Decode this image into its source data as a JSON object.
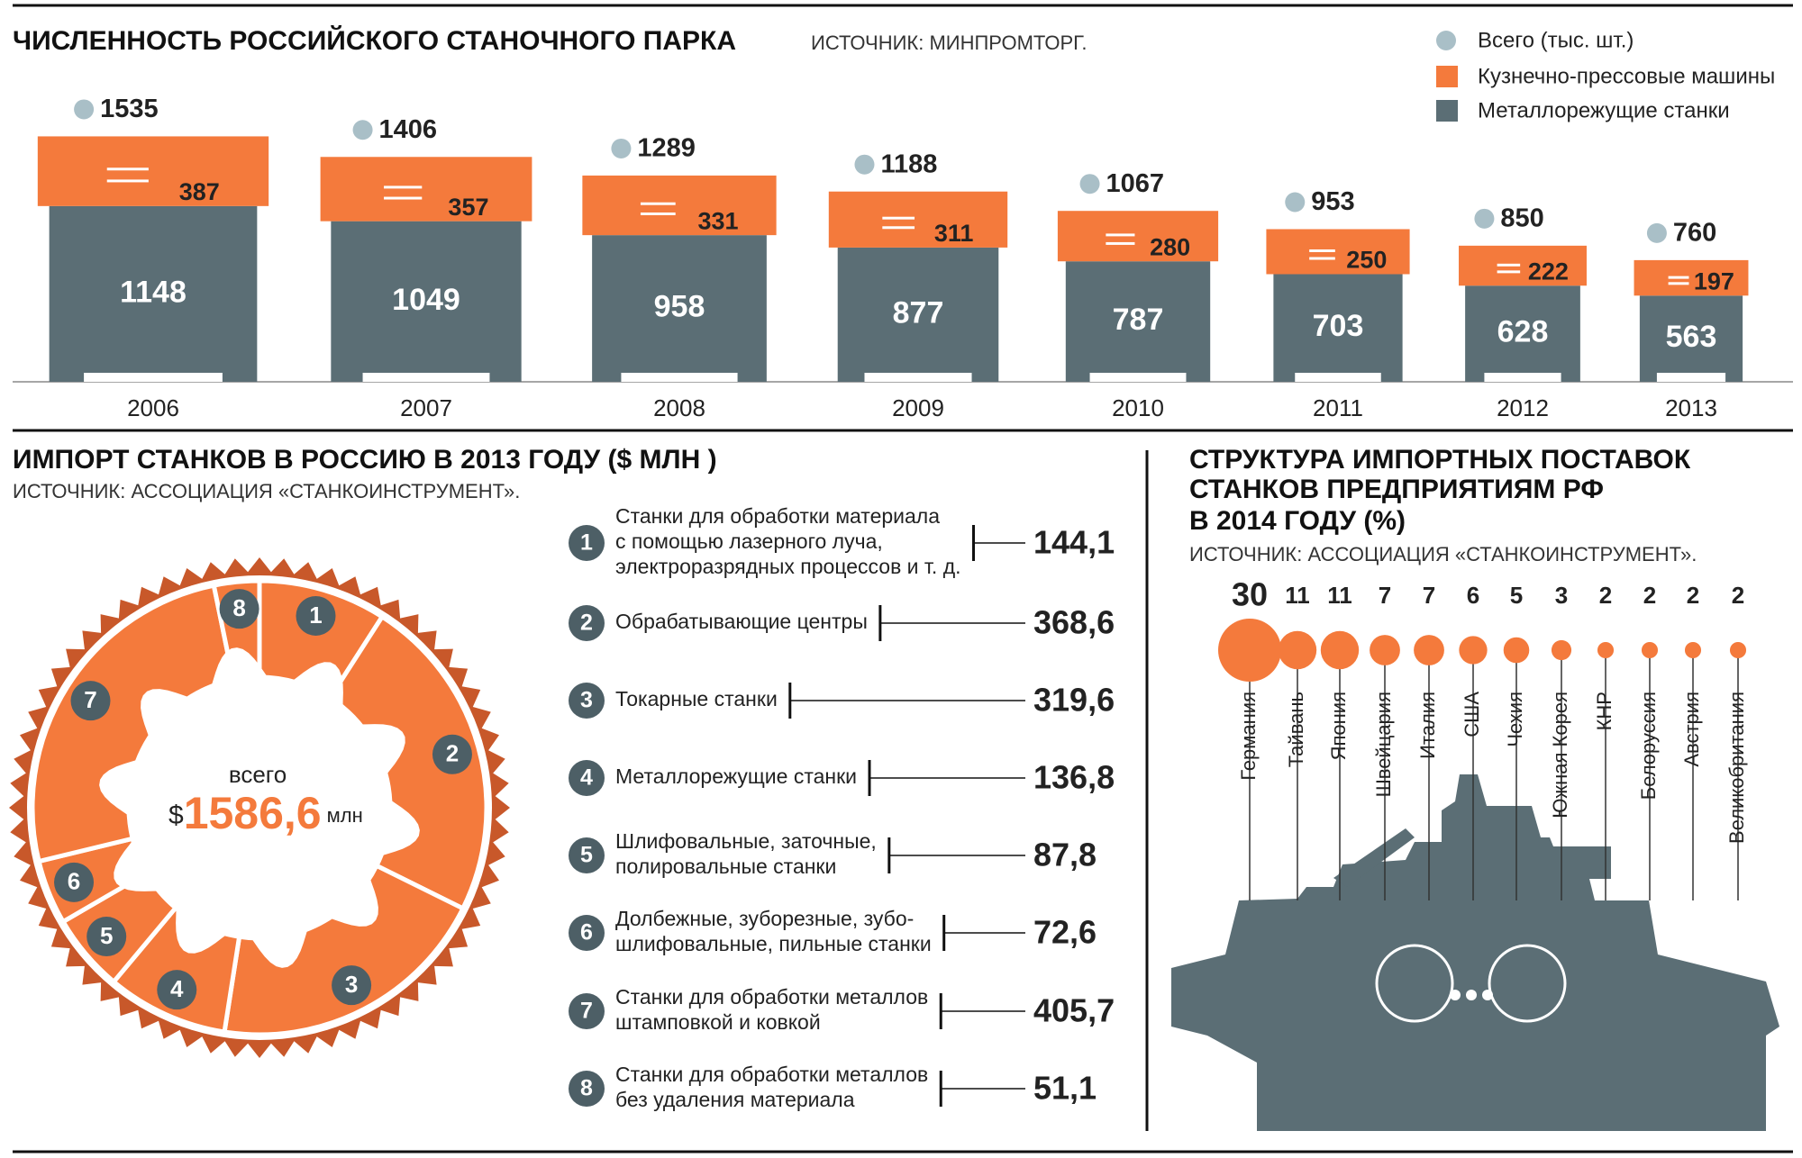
{
  "chart_data": [
    {
      "type": "stacked-bar",
      "title": "ЧИСЛЕННОСТЬ РОССИЙСКОГО СТАНОЧНОГО ПАРКА",
      "subtitle": "ИСТОЧНИК: МИНПРОМТОРГ.",
      "categories": [
        "2006",
        "2007",
        "2008",
        "2009",
        "2010",
        "2011",
        "2012",
        "2013"
      ],
      "series": [
        {
          "name": "Металлорежущие станки",
          "color": "#5b6e75",
          "values": [
            1148,
            1049,
            958,
            877,
            787,
            703,
            628,
            563
          ]
        },
        {
          "name": "Кузнечно-прессовые машины",
          "color": "#f47a3c",
          "values": [
            387,
            357,
            331,
            311,
            280,
            250,
            222,
            197
          ]
        }
      ],
      "totals": {
        "name": "Всего (тыс. шт.)",
        "color": "#a9bfc7",
        "values": [
          1535,
          1406,
          1289,
          1188,
          1067,
          953,
          850,
          760
        ]
      }
    },
    {
      "type": "donut",
      "title": "ИМПОРТ СТАНКОВ В РОССИЮ В 2013 ГОДУ ($ МЛН )",
      "subtitle": "ИСТОЧНИК: АССОЦИАЦИЯ «СТАНКОИНСТРУМЕНТ».",
      "total_caption": "всего",
      "total_prefix": "$",
      "total": {
        "value": 1586.6,
        "label": "1586,6"
      },
      "total_unit": "млн",
      "color": "#f47a3c",
      "categories": [
        "1",
        "2",
        "3",
        "4",
        "5",
        "6",
        "7",
        "8"
      ],
      "labels": [
        [
          "Станки для обработки материала",
          "с помощью лазерного луча,",
          "электроразрядных процессов и т. д."
        ],
        [
          "Обрабатывающие центры"
        ],
        [
          "Токарные станки"
        ],
        [
          "Металлорежущие станки"
        ],
        [
          "Шлифовальные, заточные,",
          "полировальные станки"
        ],
        [
          "Долбежные, зуборезные, зубо-",
          "шлифовальные, пильные станки"
        ],
        [
          "Станки для обработки металлов",
          "штамповкой и ковкой"
        ],
        [
          "Станки для обработки металлов",
          "без удаления материала"
        ]
      ],
      "values": [
        144.1,
        368.6,
        319.6,
        136.8,
        87.8,
        72.6,
        405.7,
        51.1
      ],
      "value_labels": [
        "144,1",
        "368,6",
        "319,6",
        "136,8",
        "87,8",
        "72,6",
        "405,7",
        "51,1"
      ]
    },
    {
      "type": "bubble",
      "title": [
        "СТРУКТУРА ИМПОРТНЫХ ПОСТАВОК",
        "СТАНКОВ ПРЕДПРИЯТИЯМ РФ",
        "В 2014 ГОДУ (%)"
      ],
      "subtitle": "ИСТОЧНИК: АССОЦИАЦИЯ «СТАНКОИНСТРУМЕНТ».",
      "color": "#f47a3c",
      "categories": [
        "Германия",
        "Тайвань",
        "Япония",
        "Швейцария",
        "Италия",
        "США",
        "Чехия",
        "Южная Корея",
        "КНР",
        "Белоруссия",
        "Австрия",
        "Великобритания"
      ],
      "values": [
        30,
        11,
        11,
        7,
        7,
        6,
        5,
        3,
        2,
        2,
        2,
        2
      ]
    }
  ]
}
